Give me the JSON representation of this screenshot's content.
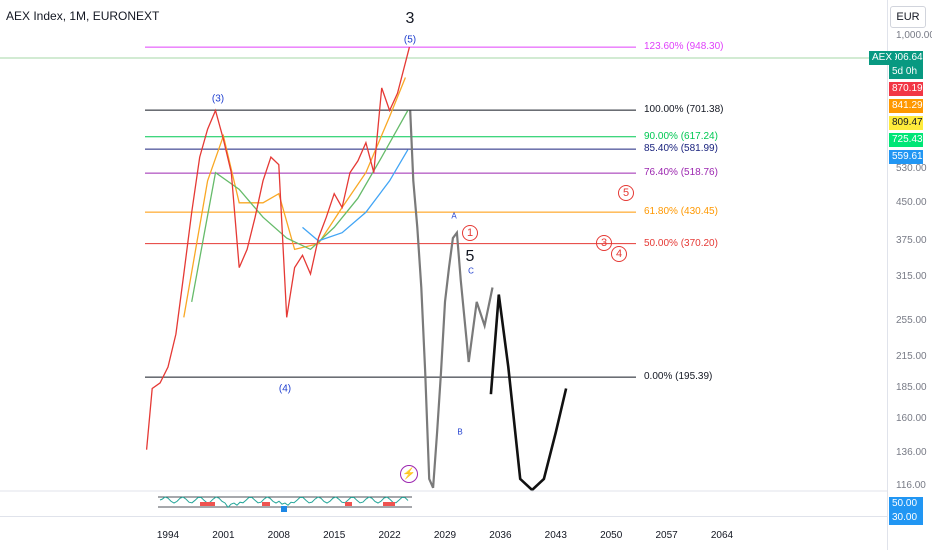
{
  "symbol_title": "AEX Index, 1M, EURONEXT",
  "currency": "EUR",
  "symbol_tag": "AEX",
  "countdown": "5d 0h",
  "current_price": "906.64",
  "price_tags": [
    {
      "value": "906.64",
      "color": "#089981"
    },
    {
      "value": "870.19",
      "color": "#f23645"
    },
    {
      "value": "841.29",
      "color": "#ff9800"
    },
    {
      "value": "809.47",
      "color": "#ffeb3b"
    },
    {
      "value": "725.43",
      "color": "#00e676"
    },
    {
      "value": "559.61",
      "color": "#2196f3"
    }
  ],
  "oscillator_tags": [
    {
      "value": "50.00",
      "color": "#2196f3"
    },
    {
      "value": "30.00",
      "color": "#2196f3"
    }
  ],
  "price_scale": [
    "1,000.00",
    "530.00",
    "450.00",
    "375.00",
    "315.00",
    "255.00",
    "215.00",
    "185.00",
    "160.00",
    "136.00",
    "116.00"
  ],
  "years": [
    "1994",
    "2001",
    "2008",
    "2015",
    "2022",
    "2029",
    "2036",
    "2043",
    "2050",
    "2057",
    "2064"
  ],
  "fib_levels": [
    {
      "label": "123.60% (948.30)",
      "color": "#e040fb"
    },
    {
      "label": "100.00% (701.38)",
      "color": "#131722"
    },
    {
      "label": "90.00% (617.24)",
      "color": "#00c853"
    },
    {
      "label": "85.40% (581.99)",
      "color": "#1a237e"
    },
    {
      "label": "76.40% (518.76)",
      "color": "#9c27b0"
    },
    {
      "label": "61.80% (430.45)",
      "color": "#ff9800"
    },
    {
      "label": "50.00% (370.20)",
      "color": "#e53935"
    },
    {
      "label": "0.00% (195.39)",
      "color": "#131722"
    }
  ],
  "wave_labels": {
    "top_3": "3",
    "wave_5": "(5)",
    "wave_3": "(3)",
    "wave_4": "(4)",
    "a": "A",
    "b": "B",
    "c": "C",
    "big_5": "5",
    "circle_1": "1",
    "circle_5": "5",
    "circle_3": "3",
    "circle_4": "4"
  },
  "lightning_icon": "lightning-icon",
  "chart_data": {
    "type": "line",
    "price_scale": "log",
    "x_range_years": [
      1991,
      2069
    ],
    "y_range": [
      110,
      1050
    ],
    "series": [
      {
        "values_note": "",
        "x": [
          1991.3,
          1992,
          1993,
          1994,
          1995,
          1996,
          1997,
          1998,
          1999,
          2000,
          2001,
          2002,
          2003,
          2004,
          2005,
          2006,
          2007,
          2008,
          2009,
          2010,
          2011,
          2012,
          2013,
          2014,
          2015,
          2016,
          2017,
          2018,
          2019,
          2020,
          2021,
          2022,
          2023,
          2024,
          2024.5
        ],
        "y": [
          138,
          185,
          190,
          205,
          240,
          320,
          430,
          560,
          640,
          700,
          610,
          520,
          330,
          360,
          420,
          500,
          560,
          540,
          260,
          330,
          350,
          320,
          380,
          420,
          470,
          440,
          520,
          550,
          600,
          520,
          780,
          700,
          760,
          880,
          948
        ]
      },
      {
        "x": [
          2024.6,
          2025,
          2025.5,
          2026,
          2026.5,
          2027,
          2027.5,
          2028,
          2028.5,
          2029,
          2029.5,
          2030,
          2030.5,
          2031,
          2032,
          2033,
          2034,
          2035
        ],
        "y": [
          700,
          500,
          400,
          300,
          200,
          120,
          115,
          150,
          200,
          280,
          330,
          380,
          390,
          310,
          210,
          280,
          250,
          300
        ]
      },
      {
        "x": [
          2034.8,
          2035.8,
          2037,
          2038.5,
          2040,
          2041.5,
          2043,
          2044.3
        ],
        "y": [
          180,
          290,
          205,
          120,
          110,
          120,
          150,
          185
        ]
      }
    ]
  }
}
